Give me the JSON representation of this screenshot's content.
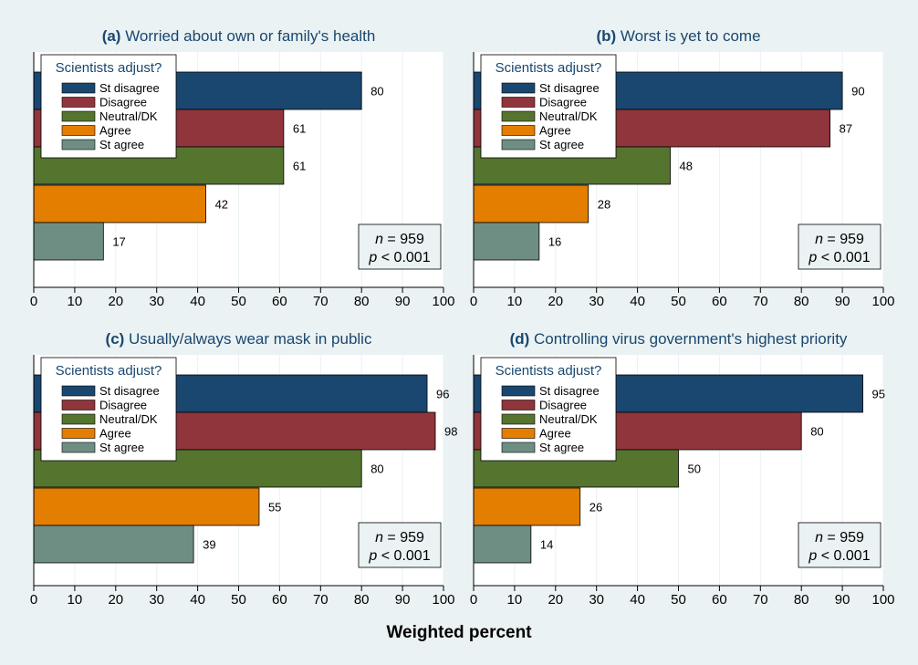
{
  "x_axis_title": "Weighted percent",
  "legend_title": "Scientists adjust?",
  "chart_data": [
    {
      "type": "bar",
      "orientation": "horizontal",
      "panel_letter": "(a)",
      "title": "Worried about own or family's health",
      "categories": [
        "St disagree",
        "Disagree",
        "Neutral/DK",
        "Agree",
        "St agree"
      ],
      "values": [
        80,
        61,
        61,
        42,
        17
      ],
      "n_label": "n",
      "n_value": "959",
      "p_label": "p",
      "p_value": "< 0.001",
      "xlim": [
        0,
        100
      ],
      "xticks": [
        0,
        10,
        20,
        30,
        40,
        50,
        60,
        70,
        80,
        90,
        100
      ],
      "xlabel": "Weighted percent",
      "grid": true,
      "legend_position": "top-left"
    },
    {
      "type": "bar",
      "orientation": "horizontal",
      "panel_letter": "(b)",
      "title": "Worst is yet to come",
      "categories": [
        "St disagree",
        "Disagree",
        "Neutral/DK",
        "Agree",
        "St agree"
      ],
      "values": [
        90,
        87,
        48,
        28,
        16
      ],
      "n_label": "n",
      "n_value": "959",
      "p_label": "p",
      "p_value": "< 0.001",
      "xlim": [
        0,
        100
      ],
      "xticks": [
        0,
        10,
        20,
        30,
        40,
        50,
        60,
        70,
        80,
        90,
        100
      ],
      "xlabel": "Weighted percent",
      "grid": true,
      "legend_position": "top-left"
    },
    {
      "type": "bar",
      "orientation": "horizontal",
      "panel_letter": "(c)",
      "title": "Usually/always wear mask in public",
      "categories": [
        "St disagree",
        "Disagree",
        "Neutral/DK",
        "Agree",
        "St agree"
      ],
      "values": [
        96,
        98,
        80,
        55,
        39
      ],
      "n_label": "n",
      "n_value": "959",
      "p_label": "p",
      "p_value": "< 0.001",
      "xlim": [
        0,
        100
      ],
      "xticks": [
        0,
        10,
        20,
        30,
        40,
        50,
        60,
        70,
        80,
        90,
        100
      ],
      "xlabel": "Weighted percent",
      "grid": true,
      "legend_position": "top-left"
    },
    {
      "type": "bar",
      "orientation": "horizontal",
      "panel_letter": "(d)",
      "title": "Controlling virus government's highest priority",
      "categories": [
        "St disagree",
        "Disagree",
        "Neutral/DK",
        "Agree",
        "St agree"
      ],
      "values": [
        95,
        80,
        50,
        26,
        14
      ],
      "n_label": "n",
      "n_value": "959",
      "p_label": "p",
      "p_value": "< 0.001",
      "xlim": [
        0,
        100
      ],
      "xticks": [
        0,
        10,
        20,
        30,
        40,
        50,
        60,
        70,
        80,
        90,
        100
      ],
      "xlabel": "Weighted percent",
      "grid": true,
      "legend_position": "top-left"
    }
  ],
  "colors": {
    "St disagree": "#1a476f",
    "Disagree": "#90353b",
    "Neutral/DK": "#55752f",
    "Agree": "#e37e00",
    "St agree": "#6e8e84",
    "background": "#eaf2f3",
    "plot_area": "#ffffff",
    "stats_box": "#eaf2f3",
    "title_text": "#1a476f"
  }
}
